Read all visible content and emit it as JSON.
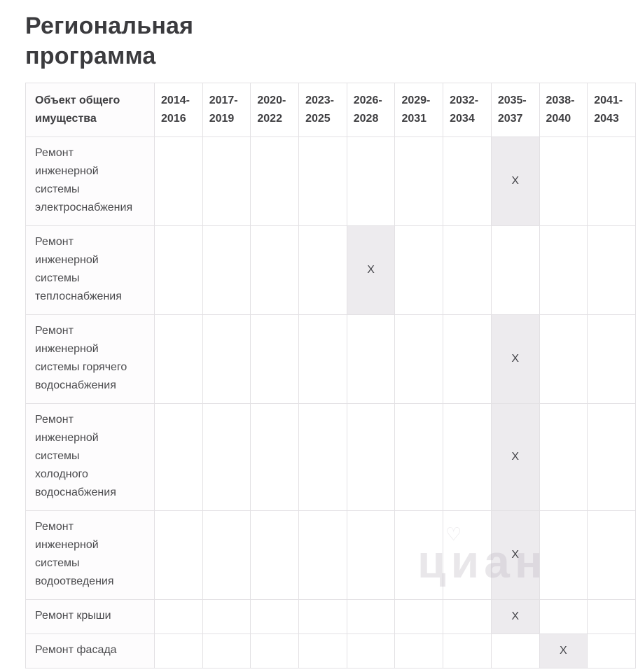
{
  "title": "Региональная программа",
  "watermark": {
    "text": "циан",
    "logo": "♡"
  },
  "colors": {
    "title_text": "#3b3b3e",
    "body_text": "#4b4b4e",
    "grid_border": "#e3e1e4",
    "marked_cell_background": "#edebee",
    "page_background": "#ffffff"
  },
  "table": {
    "object_column_header": "Объект общего имущества",
    "periods": [
      "2014-2016",
      "2017-2019",
      "2020-2022",
      "2023-2025",
      "2026-2028",
      "2029-2031",
      "2032-2034",
      "2035-2037",
      "2038-2040",
      "2041-2043"
    ],
    "mark_symbol": "X",
    "rows": [
      {
        "label": "Ремонт инженерной системы электроснабжения",
        "label_lines": [
          "Ремонт",
          "инженерной",
          "системы",
          "электроснабжения"
        ],
        "marked_period": "2035-2037"
      },
      {
        "label": "Ремонт инженерной системы теплоснабжения",
        "label_lines": [
          "Ремонт",
          "инженерной",
          "системы",
          "теплоснабжения"
        ],
        "marked_period": "2026-2028"
      },
      {
        "label": "Ремонт инженерной системы горячего водоснабжения",
        "label_lines": [
          "Ремонт",
          "инженерной",
          "системы горячего",
          "водоснабжения"
        ],
        "marked_period": "2035-2037"
      },
      {
        "label": "Ремонт инженерной системы холодного водоснабжения",
        "label_lines": [
          "Ремонт",
          "инженерной",
          "системы",
          "холодного",
          "водоснабжения"
        ],
        "marked_period": "2035-2037"
      },
      {
        "label": "Ремонт инженерной системы водоотведения",
        "label_lines": [
          "Ремонт",
          "инженерной",
          "системы",
          "водоотведения"
        ],
        "marked_period": "2035-2037"
      },
      {
        "label": "Ремонт крыши",
        "label_lines": [
          "Ремонт крыши"
        ],
        "marked_period": "2035-2037"
      },
      {
        "label": "Ремонт фасада",
        "label_lines": [
          "Ремонт фасада"
        ],
        "marked_period": "2038-2040"
      }
    ]
  }
}
